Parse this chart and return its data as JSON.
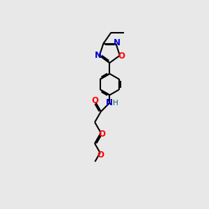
{
  "bg_color": "#e8e8e8",
  "line_color": "#000000",
  "bond_lw": 1.5,
  "atom_colors": {
    "N": "#0000cc",
    "O": "#ff0000",
    "H": "#006060",
    "C": "#000000"
  },
  "font_size_atom": 8.5,
  "font_size_h": 7.5,
  "figsize": [
    3.0,
    3.0
  ],
  "dpi": 100,
  "xlim": [
    0,
    10
  ],
  "ylim": [
    0,
    10
  ]
}
